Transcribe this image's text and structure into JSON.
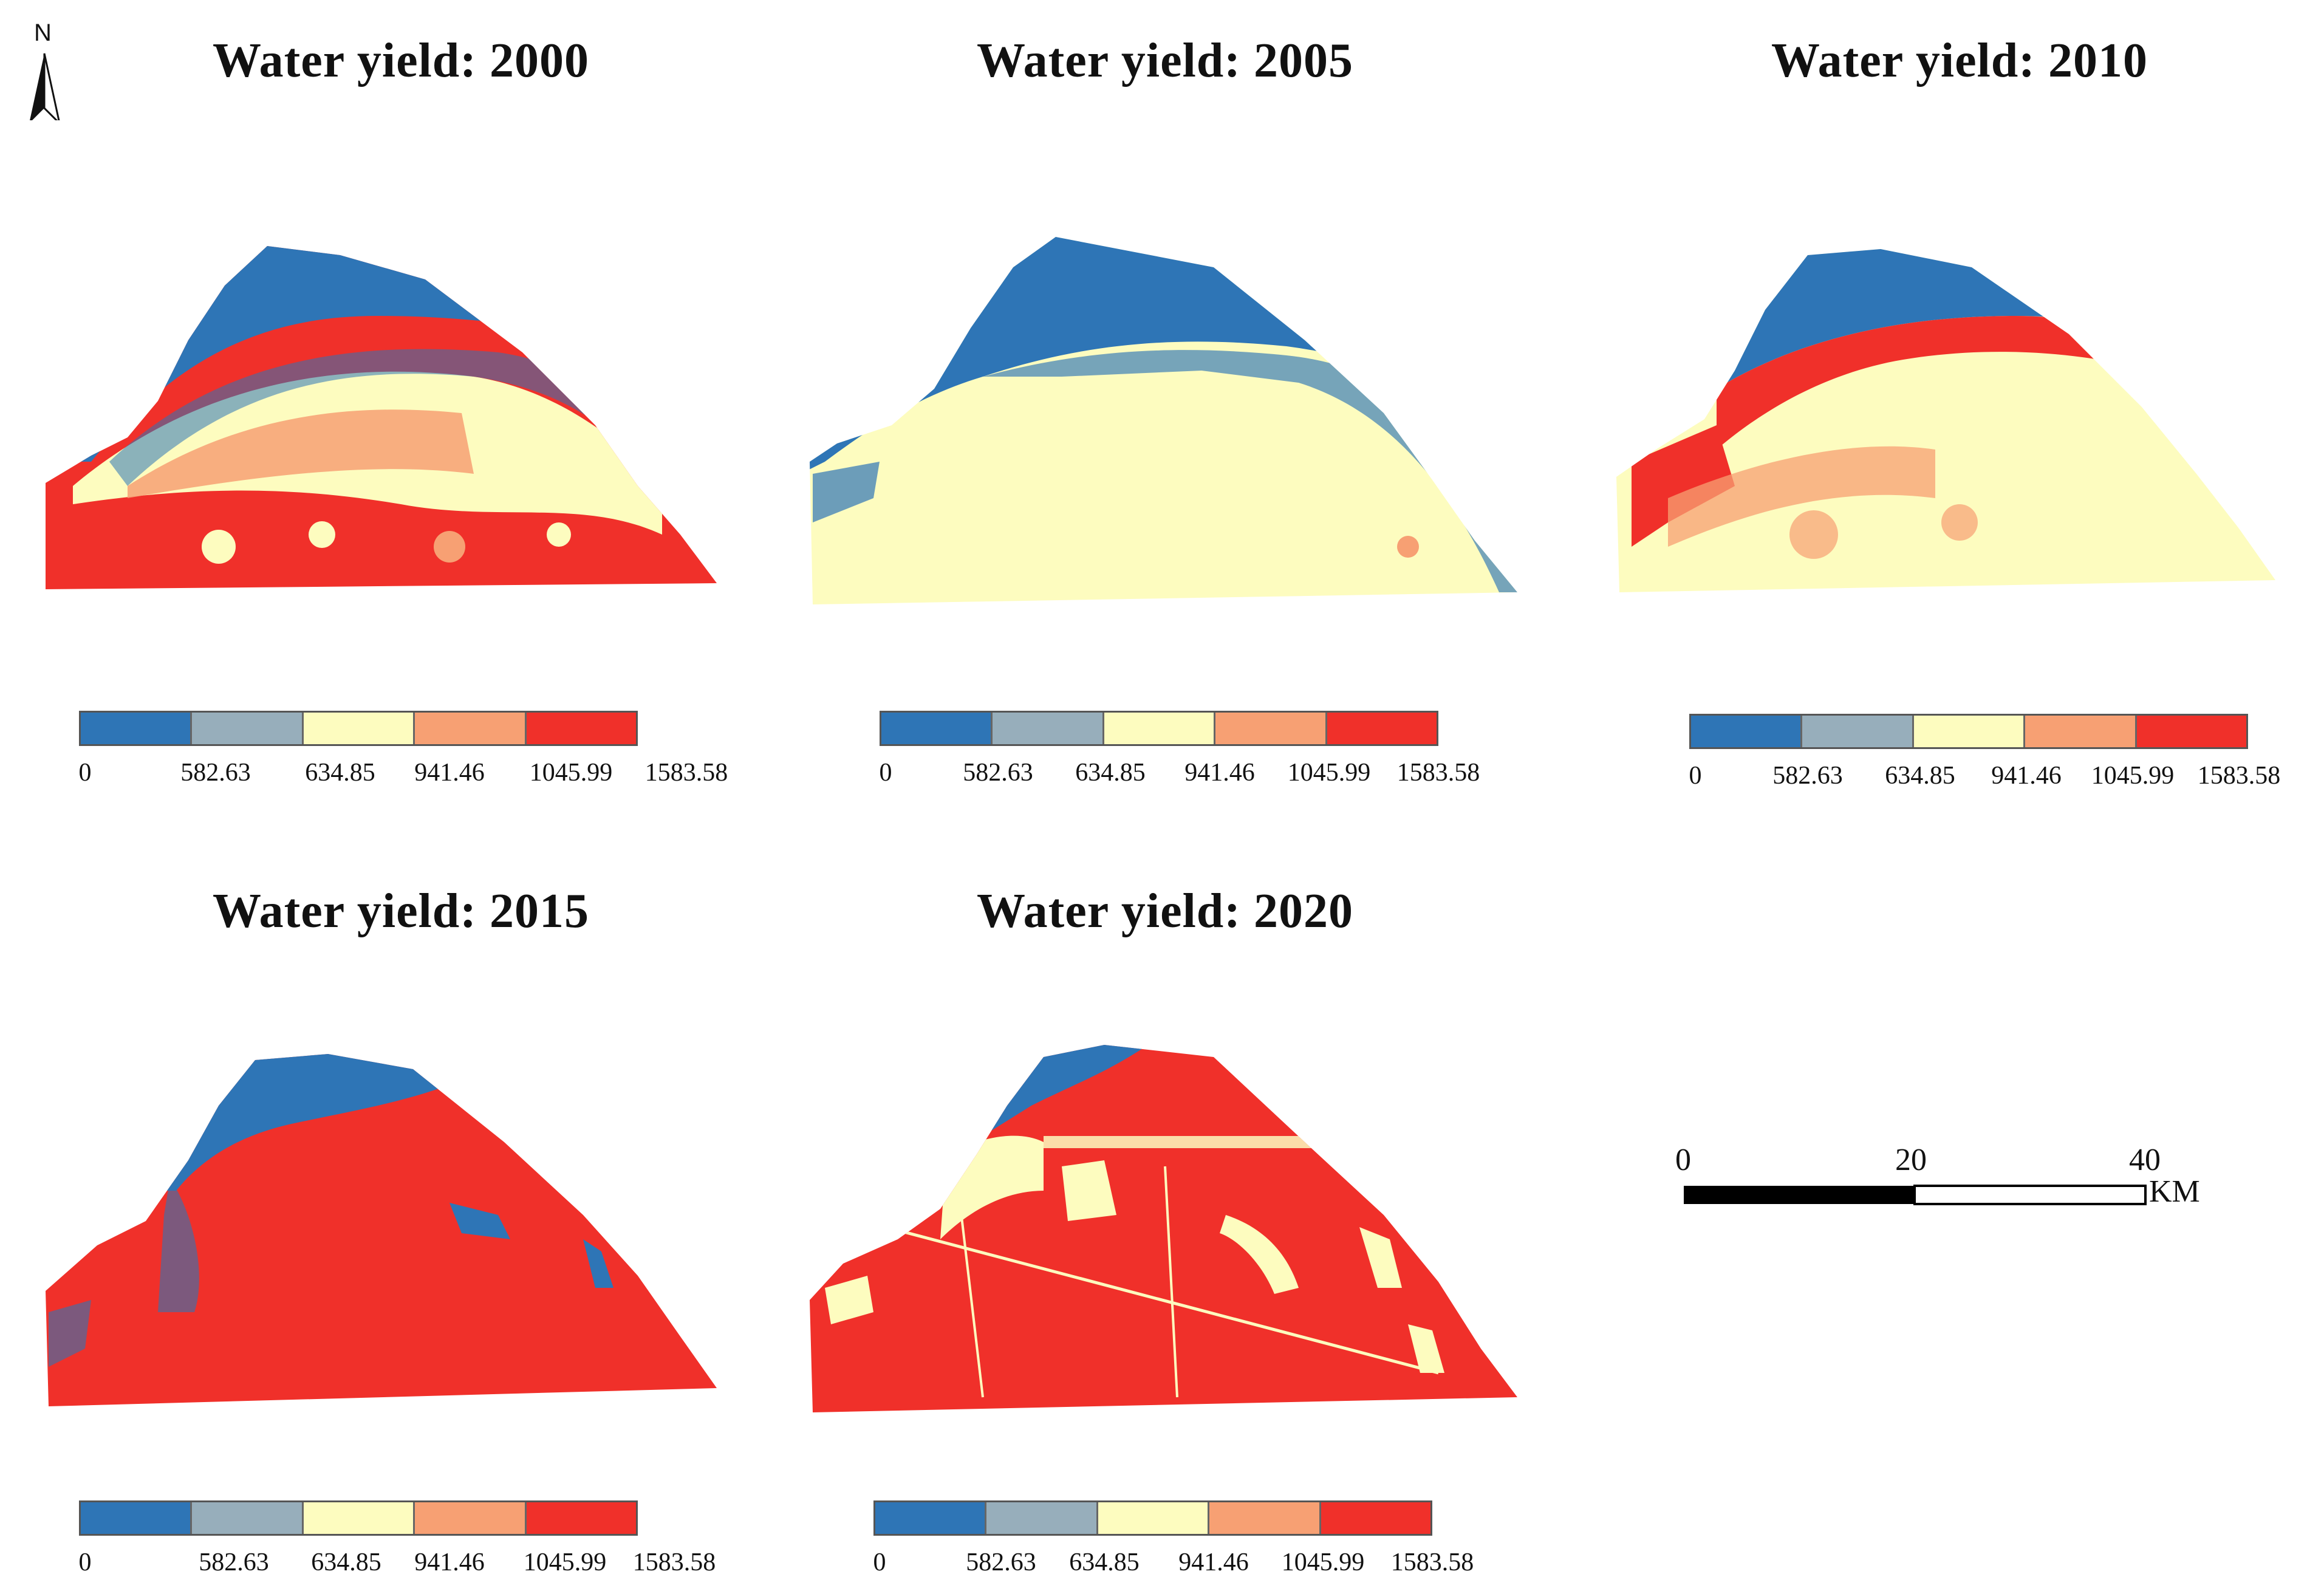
{
  "north_arrow": {
    "label": "N"
  },
  "legend": {
    "tick_labels": [
      "0",
      "582.63",
      "634.85",
      "941.46",
      "1045.99",
      "1583.58"
    ],
    "colors": [
      "#2e75b6",
      "#97aebb",
      "#fdfcbf",
      "#f7a073",
      "#f0302a"
    ]
  },
  "panels": [
    {
      "title": "Water yield: 2000",
      "pattern": "mixed-2000"
    },
    {
      "title": "Water yield: 2005",
      "pattern": "yellow-2005"
    },
    {
      "title": "Water yield: 2010",
      "pattern": "mixed-2010"
    },
    {
      "title": "Water yield: 2015",
      "pattern": "red-2015"
    },
    {
      "title": "Water yield: 2020",
      "pattern": "red-2020"
    }
  ],
  "scale_bar": {
    "labels": [
      "0",
      "20",
      "40"
    ],
    "unit": "KM"
  },
  "palette": {
    "blue": "#2e75b6",
    "yellow": "#fdfcbf",
    "orange": "#f7a073",
    "red": "#f0302a"
  }
}
